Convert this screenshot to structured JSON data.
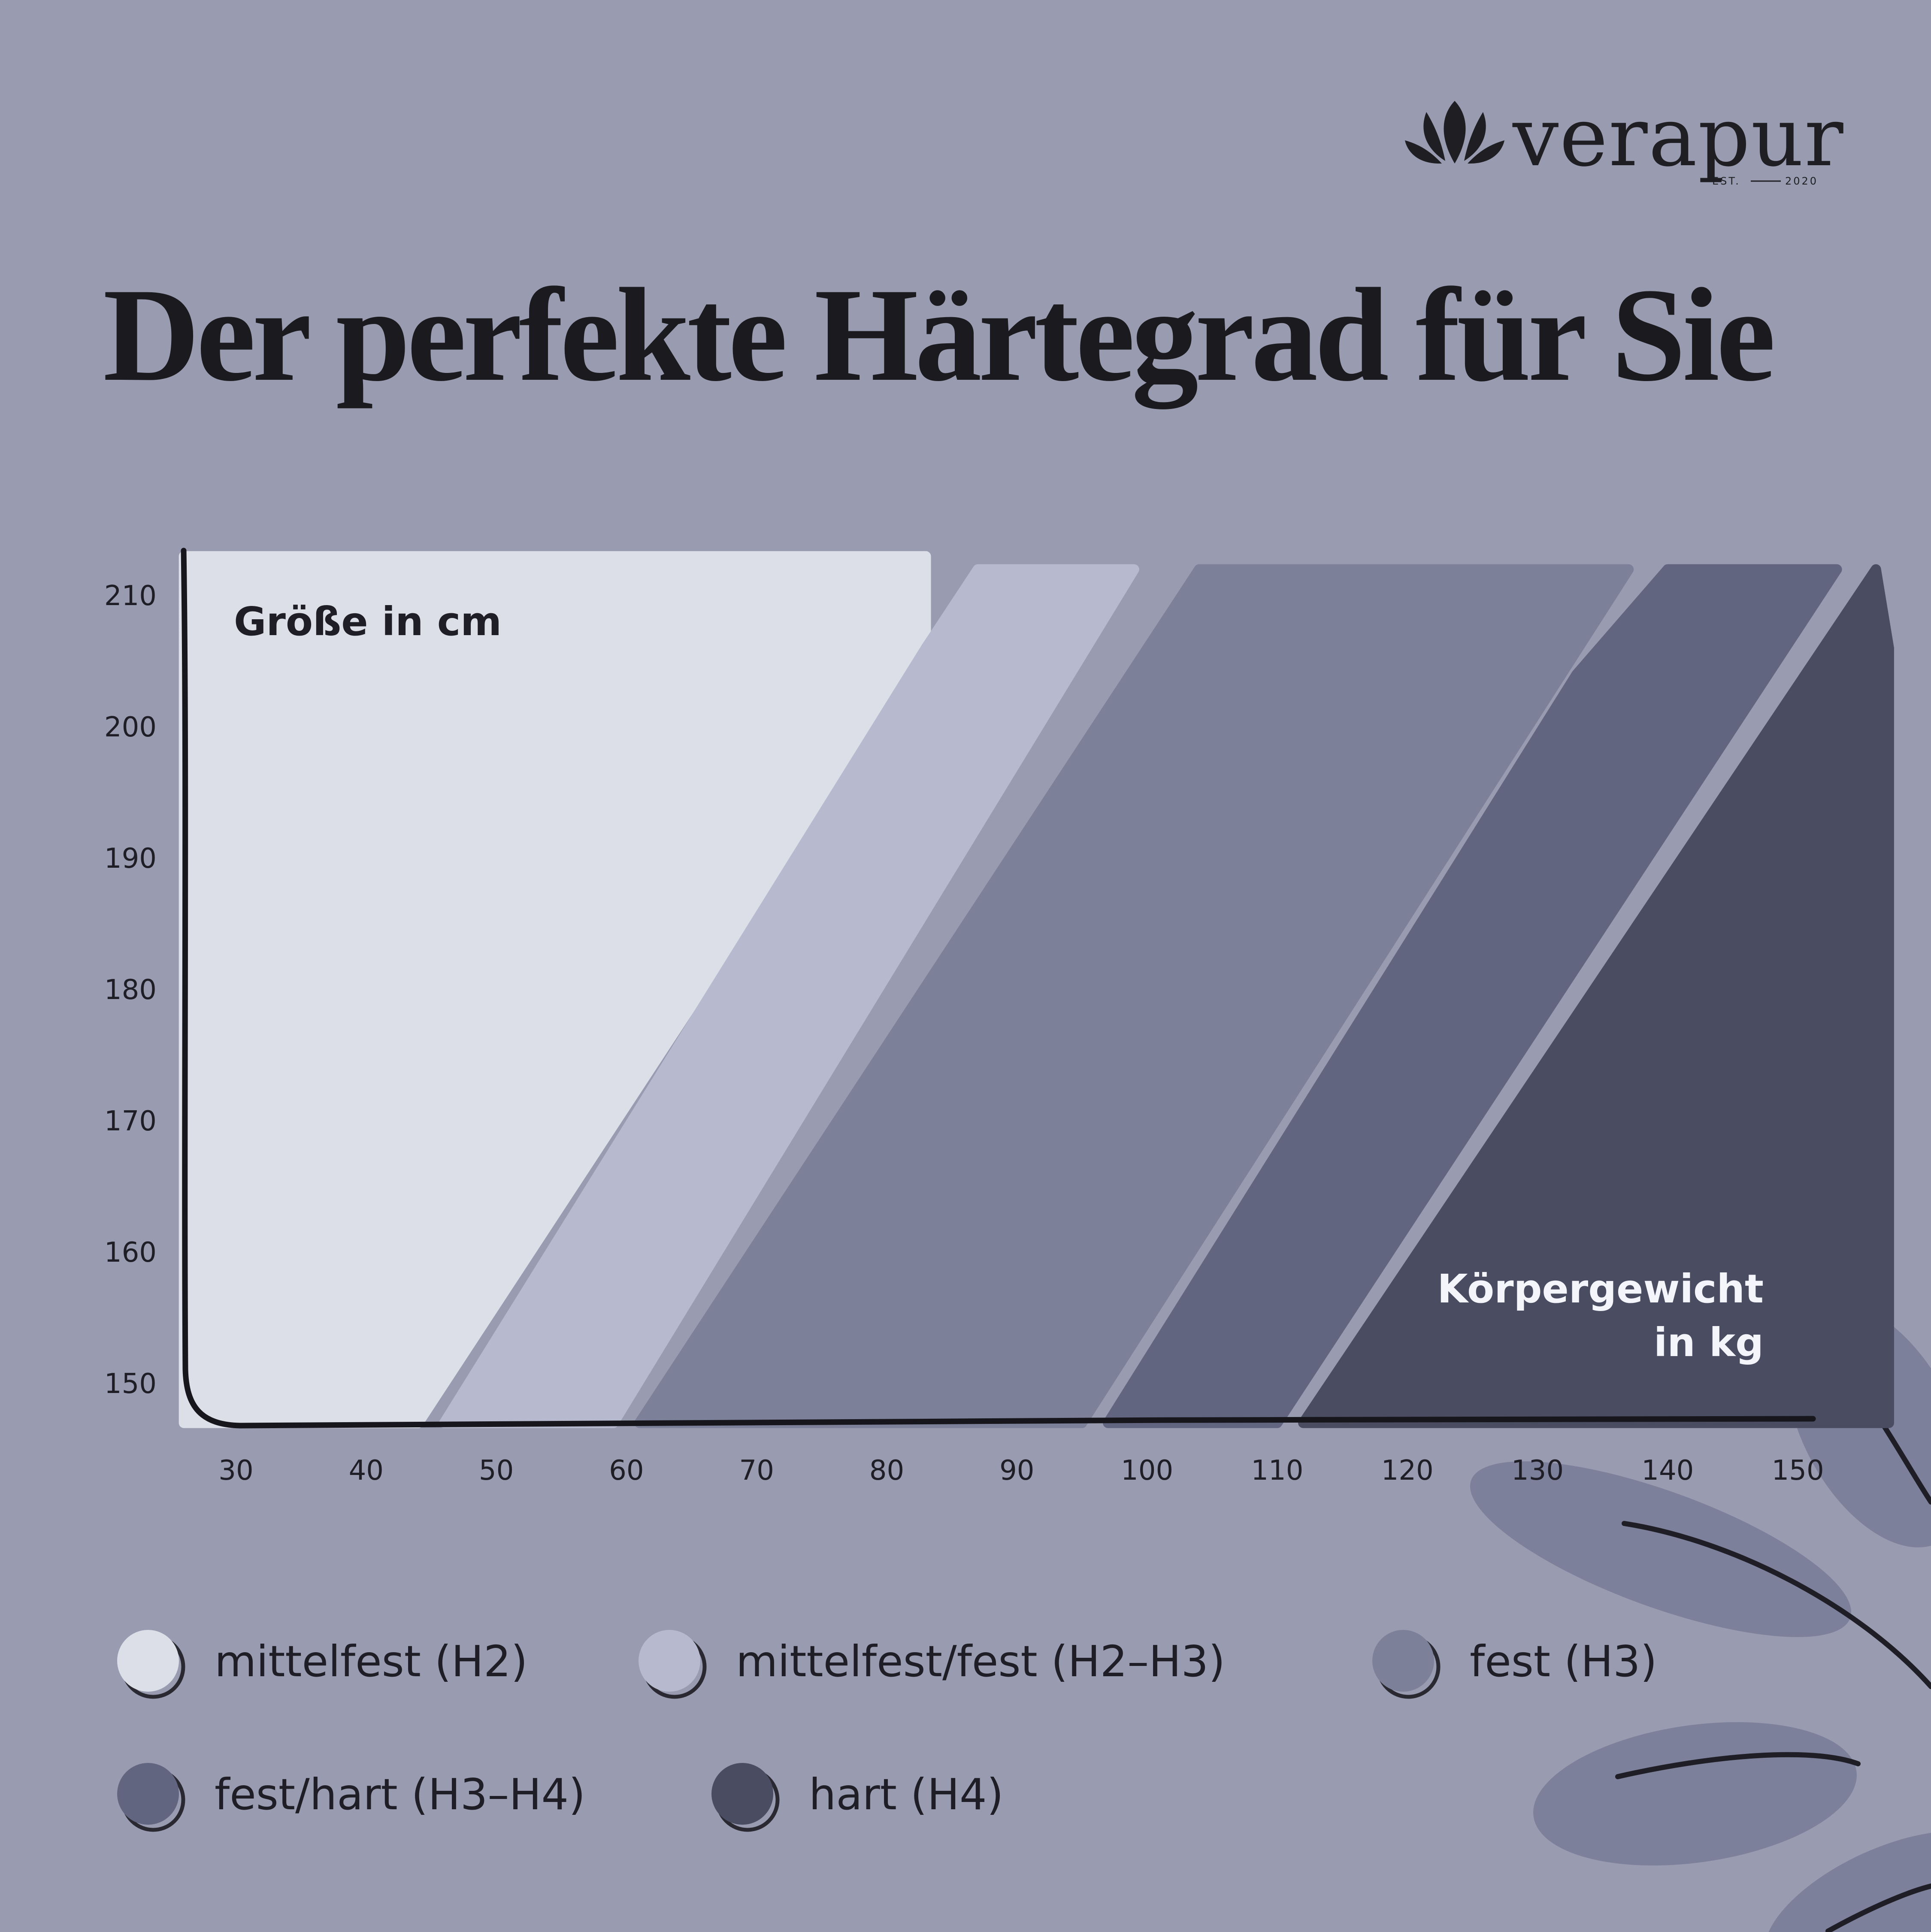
{
  "brand": {
    "name": "verapur",
    "est_label": "EST.",
    "est_year": "2020"
  },
  "title": "Der perfekte Härtegrad für Sie",
  "chart_data": {
    "type": "area",
    "ylabel": "Größe in cm",
    "xlabel_line1": "Körpergewicht",
    "xlabel_line2": "in kg",
    "x_ticks": [
      30,
      40,
      50,
      60,
      70,
      80,
      90,
      100,
      110,
      120,
      130,
      140,
      150
    ],
    "y_ticks": [
      150,
      160,
      170,
      180,
      190,
      200,
      210
    ],
    "xlim": [
      26,
      154
    ],
    "ylim": [
      147,
      213
    ],
    "grid": false,
    "legend_placement": "bottom",
    "series": [
      {
        "name": "mittelfest (H2)",
        "color": "#dcdee8",
        "polygon": [
          [
            26,
            213
          ],
          [
            83,
            213
          ],
          [
            83,
            206
          ],
          [
            44,
            147
          ],
          [
            26,
            147
          ]
        ]
      },
      {
        "name": "mittelfest/fest (H2–H3)",
        "color": "#b7bace",
        "polygon": [
          [
            87,
            212
          ],
          [
            99,
            212
          ],
          [
            59,
            147
          ],
          [
            46,
            147
          ],
          [
            83,
            206
          ]
        ]
      },
      {
        "name": "fest (H3)",
        "color": "#7c8099",
        "polygon": [
          [
            104,
            212
          ],
          [
            137,
            212
          ],
          [
            95,
            147
          ],
          [
            61,
            147
          ]
        ]
      },
      {
        "name": "fest/hart (H3–H4)",
        "color": "#616580",
        "polygon": [
          [
            140,
            212
          ],
          [
            153,
            212
          ],
          [
            110,
            147
          ],
          [
            97,
            147
          ],
          [
            133,
            204
          ]
        ]
      },
      {
        "name": "hart (H4)",
        "color": "#4a4c62",
        "polygon": [
          [
            156,
            212
          ],
          [
            157,
            206
          ],
          [
            157,
            147
          ],
          [
            112,
            147
          ]
        ]
      }
    ]
  },
  "legend": [
    {
      "label": "mittelfest (H2)",
      "color": "#dcdee8"
    },
    {
      "label": "mittelfest/fest (H2–H3)",
      "color": "#b7bace"
    },
    {
      "label": "fest (H3)",
      "color": "#7c8099"
    },
    {
      "label": "fest/hart (H3–H4)",
      "color": "#616580"
    },
    {
      "label": "hart (H4)",
      "color": "#4a4c62"
    }
  ],
  "colors": {
    "background": "#999cb1",
    "ink": "#1f1e22",
    "leaf": "#7c809b"
  }
}
